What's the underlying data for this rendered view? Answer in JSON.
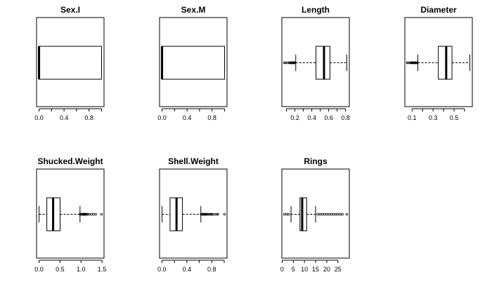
{
  "chart_data": [
    {
      "type": "boxplot",
      "title": "Sex.I",
      "orientation": "horizontal",
      "xlim": [
        0,
        1
      ],
      "ticks": [
        0.0,
        0.4,
        0.8
      ],
      "tick_labels": [
        "0.0",
        "0.4",
        "0.8"
      ],
      "minor_ticks": [
        0.2,
        0.6,
        1.0
      ],
      "box": {
        "whisker_low": 0.0,
        "q1": 0.0,
        "median": 0.0,
        "q3": 1.0,
        "whisker_high": 1.0
      },
      "outliers": []
    },
    {
      "type": "boxplot",
      "title": "Sex.M",
      "orientation": "horizontal",
      "xlim": [
        0,
        1
      ],
      "ticks": [
        0.0,
        0.4,
        0.8
      ],
      "tick_labels": [
        "0.0",
        "0.4",
        "0.8"
      ],
      "minor_ticks": [
        0.2,
        0.6,
        1.0
      ],
      "box": {
        "whisker_low": 0.0,
        "q1": 0.0,
        "median": 0.0,
        "q3": 1.0,
        "whisker_high": 1.0
      },
      "outliers": []
    },
    {
      "type": "boxplot",
      "title": "Length",
      "orientation": "horizontal",
      "xlim": [
        0.075,
        0.815
      ],
      "ticks": [
        0.2,
        0.4,
        0.6,
        0.8
      ],
      "tick_labels": [
        "0.2",
        "0.4",
        "0.6",
        "0.8"
      ],
      "minor_ticks": [
        0.1,
        0.3,
        0.5,
        0.7
      ],
      "box": {
        "whisker_low": 0.21,
        "q1": 0.45,
        "median": 0.545,
        "q3": 0.615,
        "whisker_high": 0.815
      },
      "outliers": [
        0.075,
        0.09,
        0.11,
        0.13,
        0.14,
        0.15,
        0.155,
        0.16,
        0.165,
        0.17,
        0.175,
        0.18,
        0.185,
        0.19,
        0.195,
        0.2
      ]
    },
    {
      "type": "boxplot",
      "title": "Diameter",
      "orientation": "horizontal",
      "xlim": [
        0.055,
        0.65
      ],
      "ticks": [
        0.1,
        0.3,
        0.5
      ],
      "tick_labels": [
        "0.1",
        "0.3",
        "0.5"
      ],
      "minor_ticks": [
        0.2,
        0.4,
        0.6
      ],
      "box": {
        "whisker_low": 0.155,
        "q1": 0.35,
        "median": 0.425,
        "q3": 0.48,
        "whisker_high": 0.65
      },
      "outliers": [
        0.055,
        0.06,
        0.08,
        0.09,
        0.095,
        0.1,
        0.105,
        0.11,
        0.115,
        0.12,
        0.125,
        0.13,
        0.135,
        0.14,
        0.145,
        0.15
      ]
    },
    {
      "type": "boxplot",
      "title": "Shucked.Weight",
      "orientation": "horizontal",
      "xlim": [
        0.001,
        1.488
      ],
      "ticks": [
        0.0,
        0.5,
        1.0,
        1.5
      ],
      "tick_labels": [
        "0.0",
        "0.5",
        "1.0",
        "1.5"
      ],
      "minor_ticks": [],
      "box": {
        "whisker_low": 0.001,
        "q1": 0.186,
        "median": 0.336,
        "q3": 0.502,
        "whisker_high": 0.976
      },
      "outliers": [
        0.98,
        1.0,
        1.02,
        1.04,
        1.05,
        1.06,
        1.07,
        1.08,
        1.09,
        1.1,
        1.12,
        1.14,
        1.16,
        1.2,
        1.25,
        1.3,
        1.35,
        1.488
      ]
    },
    {
      "type": "boxplot",
      "title": "Shell.Weight",
      "orientation": "horizontal",
      "xlim": [
        0.0015,
        1.005
      ],
      "ticks": [
        0.0,
        0.4,
        0.8
      ],
      "tick_labels": [
        "0.0",
        "0.4",
        "0.8"
      ],
      "minor_ticks": [
        0.2,
        0.6,
        1.0
      ],
      "box": {
        "whisker_low": 0.0015,
        "q1": 0.13,
        "median": 0.234,
        "q3": 0.329,
        "whisker_high": 0.625
      },
      "outliers": [
        0.63,
        0.645,
        0.66,
        0.67,
        0.68,
        0.69,
        0.7,
        0.71,
        0.72,
        0.74,
        0.76,
        0.78,
        0.8,
        0.82,
        0.85,
        0.88,
        0.9,
        1.005
      ]
    },
    {
      "type": "boxplot",
      "title": "Rings",
      "orientation": "horizontal",
      "xlim": [
        1,
        29
      ],
      "ticks": [
        0,
        5,
        10,
        15,
        20,
        25
      ],
      "tick_labels": [
        "0",
        "5",
        "10",
        "15",
        "20",
        "25"
      ],
      "minor_ticks": [],
      "box": {
        "whisker_low": 4,
        "q1": 8,
        "median": 9,
        "q3": 11,
        "whisker_high": 15
      },
      "outliers": [
        1,
        2,
        3,
        16,
        17,
        18,
        19,
        20,
        21,
        22,
        23,
        24,
        25,
        26,
        27,
        29
      ]
    }
  ]
}
